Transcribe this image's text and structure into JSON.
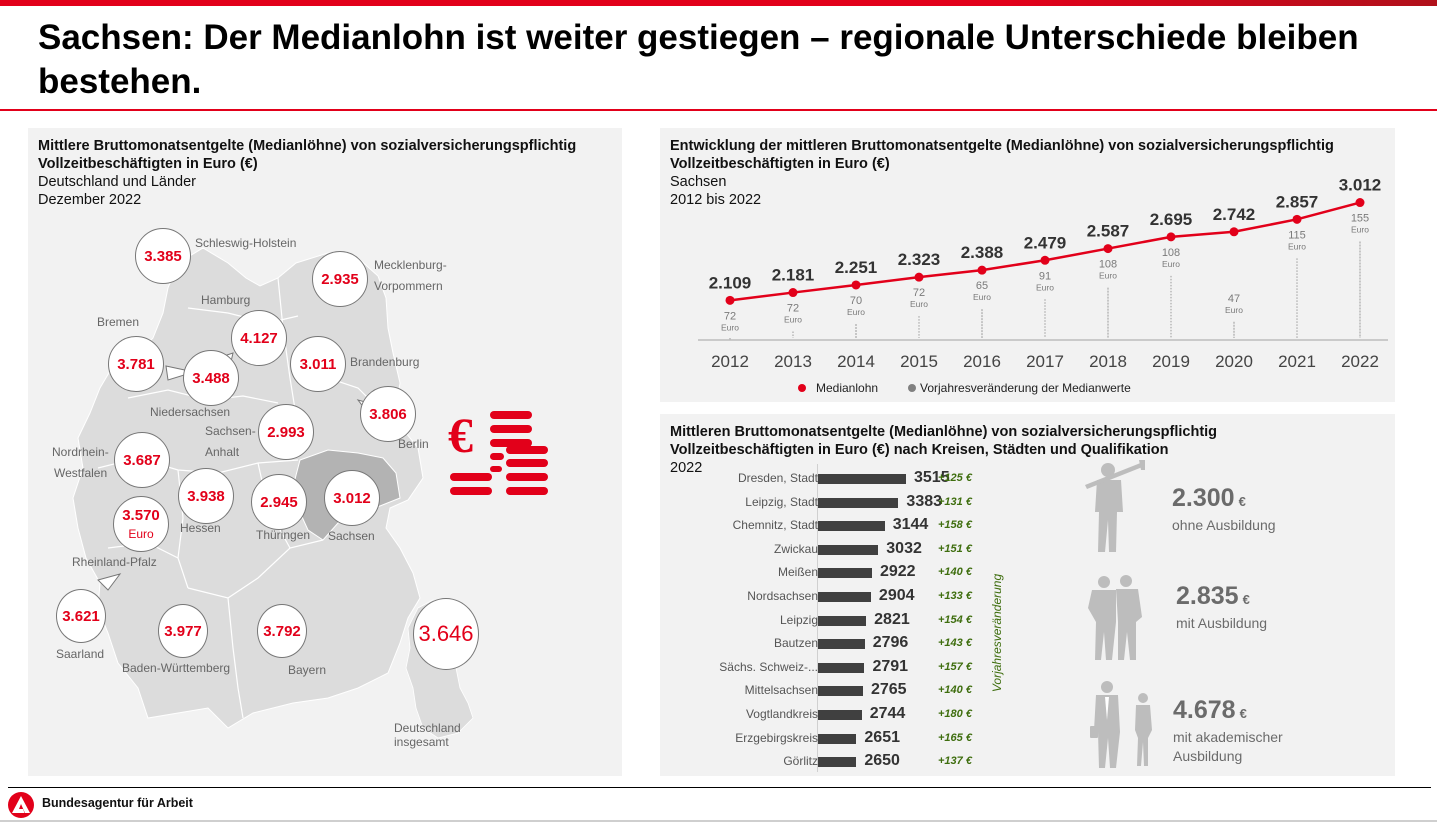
{
  "title": "Sachsen: Der Medianlohn ist weiter gestiegen – regionale Unterschiede bleiben bestehen.",
  "colors": {
    "brand_red": "#e2001a",
    "panel_bg": "#f2f2f2",
    "delta_green": "#3f6e0f",
    "bar_dark": "#404040",
    "change_grey": "#7a7a7a"
  },
  "map_panel": {
    "title": "Mittlere Bruttomonatsentgelte (Medianlöhne) von sozialversicherungspflichtig Vollzeitbeschäftigten in Euro (€)",
    "subtitle1": "Deutschland und Länder",
    "subtitle2": "Dezember 2022",
    "euro_unit": "Euro",
    "states": [
      {
        "name": "Schleswig-Holstein",
        "value": "3.385"
      },
      {
        "name": "Mecklenburg-Vorpommern",
        "label1": "Mecklenburg-",
        "label2": "Vorpommern",
        "value": "2.935"
      },
      {
        "name": "Hamburg",
        "value": "4.127"
      },
      {
        "name": "Bremen",
        "value": "3.781"
      },
      {
        "name": "Niedersachsen",
        "value": "3.488"
      },
      {
        "name": "Brandenburg",
        "value": "3.011"
      },
      {
        "name": "Berlin",
        "value": "3.806"
      },
      {
        "name": "Sachsen-Anhalt",
        "label1": "Sachsen-",
        "label2": "Anhalt",
        "value": "2.993"
      },
      {
        "name": "Nordrhein-Westfalen",
        "label1": "Nordrhein-",
        "label2": "Westfalen",
        "value": "3.687"
      },
      {
        "name": "Hessen",
        "value": "3.938"
      },
      {
        "name": "Thüringen",
        "value": "2.945"
      },
      {
        "name": "Sachsen",
        "value": "3.012"
      },
      {
        "name": "Rheinland-Pfalz",
        "value": "3.570"
      },
      {
        "name": "Saarland",
        "value": "3.621"
      },
      {
        "name": "Baden-Württemberg",
        "value": "3.977"
      },
      {
        "name": "Bayern",
        "value": "3.792"
      }
    ],
    "germany": {
      "label1": "Deutschland",
      "label2": "insgesamt",
      "value": "3.646"
    }
  },
  "line_panel": {
    "title": "Entwicklung der mittleren Bruttomonatsentgelte (Medianlöhne) von sozialversicherungspflichtig Vollzeitbeschäftigten in Euro (€)",
    "subtitle1": "Sachsen",
    "subtitle2": "2012 bis 2022",
    "legend_median": "Medianlohn",
    "legend_change": "Vorjahresveränderung der Medianwerte",
    "change_unit": "Euro"
  },
  "bars_panel": {
    "title": "Mittleren Bruttomonatsentgelte (Medianlöhne) von sozialversicherungspflichtig Vollzeitbeschäftigten in Euro (€) nach Kreisen, Städten und Qualifikation",
    "subtitle": "2022",
    "delta_axis_label": "Vorjahresveränderung",
    "qualifications": [
      {
        "value": "2.300",
        "unit": "€",
        "label1": "ohne Ausbildung",
        "label2": ""
      },
      {
        "value": "2.835",
        "unit": "€",
        "label1": "mit Ausbildung",
        "label2": ""
      },
      {
        "value": "4.678",
        "unit": "€",
        "label1": "mit akademischer",
        "label2": "Ausbildung"
      }
    ]
  },
  "footer": {
    "org_name": "Bundesagentur für Arbeit"
  },
  "chart_data": [
    {
      "type": "line",
      "title": "Entwicklung der mittleren Bruttomonatsentgelte (Medianlöhne) von sozialversicherungspflichtig Vollzeitbeschäftigten in Euro (€) – Sachsen 2012 bis 2022",
      "x": [
        "2012",
        "2013",
        "2014",
        "2015",
        "2016",
        "2017",
        "2018",
        "2019",
        "2020",
        "2021",
        "2022"
      ],
      "series": [
        {
          "name": "Medianlohn",
          "values": [
            2109,
            2181,
            2251,
            2323,
            2388,
            2479,
            2587,
            2695,
            2742,
            2857,
            3012
          ],
          "labels": [
            "2.109",
            "2.181",
            "2.251",
            "2.323",
            "2.388",
            "2.479",
            "2.587",
            "2.695",
            "2.742",
            "2.857",
            "3.012"
          ]
        },
        {
          "name": "Vorjahresveränderung der Medianwerte",
          "values": [
            72,
            72,
            70,
            72,
            65,
            91,
            108,
            108,
            47,
            115,
            155
          ]
        }
      ],
      "xlabel": "",
      "ylabel": "Euro",
      "ylim": [
        1900,
        3100
      ],
      "grid": false,
      "legend": "bottom"
    },
    {
      "type": "bar",
      "orientation": "horizontal",
      "title": "Mittleren Bruttomonatsentgelte (Medianlöhne) nach Kreisen und Städten, Sachsen 2022",
      "categories": [
        "Dresden, Stadt",
        "Leipzig, Stadt",
        "Chemnitz, Stadt",
        "Zwickau",
        "Meißen",
        "Nordsachsen",
        "Leipzig",
        "Bautzen",
        "Sächs. Schweiz-...",
        "Mittelsachsen",
        "Vogtlandkreis",
        "Erzgebirgskreis",
        "Görlitz"
      ],
      "series": [
        {
          "name": "Medianlohn",
          "values": [
            3515,
            3383,
            3144,
            3032,
            2922,
            2904,
            2821,
            2796,
            2791,
            2765,
            2744,
            2651,
            2650
          ]
        },
        {
          "name": "Vorjahresveränderung",
          "values": [
            125,
            131,
            158,
            151,
            140,
            133,
            154,
            143,
            157,
            140,
            180,
            165,
            137
          ],
          "labels": [
            "+125 €",
            "+131 €",
            "+158 €",
            "+151 €",
            "+140 €",
            "+133 €",
            "+154 €",
            "+143 €",
            "+157 €",
            "+140 €",
            "+180 €",
            "+165 €",
            "+137 €"
          ]
        }
      ],
      "xlim": [
        0,
        3515
      ]
    },
    {
      "type": "table",
      "title": "Medianlöhne Deutschland und Länder, Dezember 2022 (Euro)",
      "categories": [
        "Schleswig-Holstein",
        "Mecklenburg-Vorpommern",
        "Hamburg",
        "Bremen",
        "Niedersachsen",
        "Brandenburg",
        "Berlin",
        "Sachsen-Anhalt",
        "Nordrhein-Westfalen",
        "Hessen",
        "Thüringen",
        "Sachsen",
        "Rheinland-Pfalz",
        "Saarland",
        "Baden-Württemberg",
        "Bayern",
        "Deutschland insgesamt"
      ],
      "values": [
        3385,
        2935,
        4127,
        3781,
        3488,
        3011,
        3806,
        2993,
        3687,
        3938,
        2945,
        3012,
        3570,
        3621,
        3977,
        3792,
        3646
      ]
    },
    {
      "type": "table",
      "title": "Medianlohn Sachsen nach Qualifikation 2022 (€)",
      "categories": [
        "ohne Ausbildung",
        "mit Ausbildung",
        "mit akademischer Ausbildung"
      ],
      "values": [
        2300,
        2835,
        4678
      ]
    }
  ]
}
